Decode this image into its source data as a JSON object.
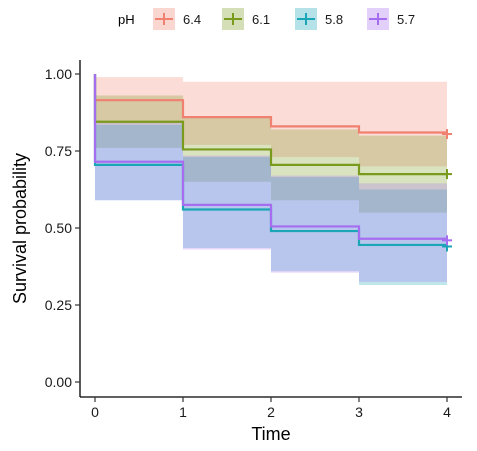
{
  "chart_data": {
    "type": "line",
    "subtype": "kaplan-meier step curves with confidence bands",
    "xlabel": "Time",
    "ylabel": "Survival probability",
    "xlim": [
      0,
      4
    ],
    "ylim": [
      0,
      1
    ],
    "x_ticks": [
      "0",
      "1",
      "2",
      "3",
      "4"
    ],
    "y_ticks": [
      "0.00",
      "0.25",
      "0.50",
      "0.75",
      "1.00"
    ],
    "legend": {
      "title": "pH",
      "position": "top"
    },
    "grid": false,
    "series": [
      {
        "name": "6.4",
        "color": "#F08070",
        "time": [
          0,
          1,
          2,
          3,
          4
        ],
        "survival": [
          0.915,
          0.86,
          0.83,
          0.81,
          0.81
        ],
        "lower": [
          0.84,
          0.77,
          0.73,
          0.7,
          0.7
        ],
        "upper": [
          0.99,
          0.975,
          0.975,
          0.975,
          0.975
        ],
        "censor_time": 4,
        "censor_value": 0.805
      },
      {
        "name": "6.1",
        "color": "#7A9A1E",
        "time": [
          0,
          1,
          2,
          3,
          4
        ],
        "survival": [
          0.845,
          0.755,
          0.705,
          0.675,
          0.675
        ],
        "lower": [
          0.76,
          0.65,
          0.59,
          0.55,
          0.55
        ],
        "upper": [
          0.93,
          0.86,
          0.82,
          0.8,
          0.8
        ],
        "censor_time": 4,
        "censor_value": 0.675
      },
      {
        "name": "5.8",
        "color": "#1AA6B7",
        "time": [
          0,
          1,
          2,
          3,
          4
        ],
        "survival": [
          0.705,
          0.56,
          0.49,
          0.445,
          0.445
        ],
        "lower": [
          0.59,
          0.435,
          0.36,
          0.315,
          0.315
        ],
        "upper": [
          0.835,
          0.73,
          0.665,
          0.625,
          0.625
        ],
        "censor_time": 4,
        "censor_value": 0.44
      },
      {
        "name": "5.7",
        "color": "#A56EF0",
        "time": [
          0,
          1,
          2,
          3,
          4
        ],
        "survival": [
          0.715,
          0.575,
          0.505,
          0.465,
          0.465
        ],
        "lower": [
          0.59,
          0.43,
          0.355,
          0.325,
          0.325
        ],
        "upper": [
          0.845,
          0.735,
          0.67,
          0.645,
          0.645
        ],
        "censor_time": 4,
        "censor_value": 0.46
      }
    ]
  }
}
